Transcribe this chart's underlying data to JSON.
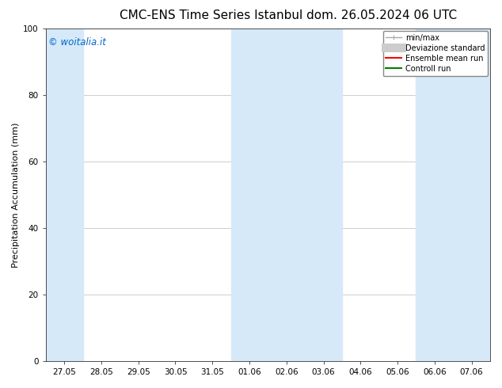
{
  "title_left": "CMC-ENS Time Series Istanbul",
  "title_right": "dom. 26.05.2024 06 UTC",
  "ylabel": "Precipitation Accumulation (mm)",
  "ylim": [
    0,
    100
  ],
  "yticks": [
    0,
    20,
    40,
    60,
    80,
    100
  ],
  "xtick_labels": [
    "27.05",
    "28.05",
    "29.05",
    "30.05",
    "31.05",
    "01.06",
    "02.06",
    "03.06",
    "04.06",
    "05.06",
    "06.06",
    "07.06"
  ],
  "band_color": "#d6e9f8",
  "band_alpha": 1.0,
  "watermark_text": "© woitalia.it",
  "watermark_color": "#0066cc",
  "bg_color": "#ffffff",
  "plot_bg_color": "#ffffff",
  "legend_items": [
    {
      "label": "min/max",
      "color": "#aaaaaa",
      "linewidth": 1.0,
      "linestyle": "-",
      "type": "line_caps"
    },
    {
      "label": "Deviazione standard",
      "color": "#cccccc",
      "linewidth": 8,
      "linestyle": "-",
      "type": "thick_line"
    },
    {
      "label": "Ensemble mean run",
      "color": "#ff0000",
      "linewidth": 1.5,
      "linestyle": "-",
      "type": "line"
    },
    {
      "label": "Controll run",
      "color": "#008000",
      "linewidth": 1.5,
      "linestyle": "-",
      "type": "line"
    }
  ],
  "title_fontsize": 11,
  "ylabel_fontsize": 8,
  "tick_fontsize": 7.5,
  "legend_fontsize": 7,
  "watermark_fontsize": 8.5
}
